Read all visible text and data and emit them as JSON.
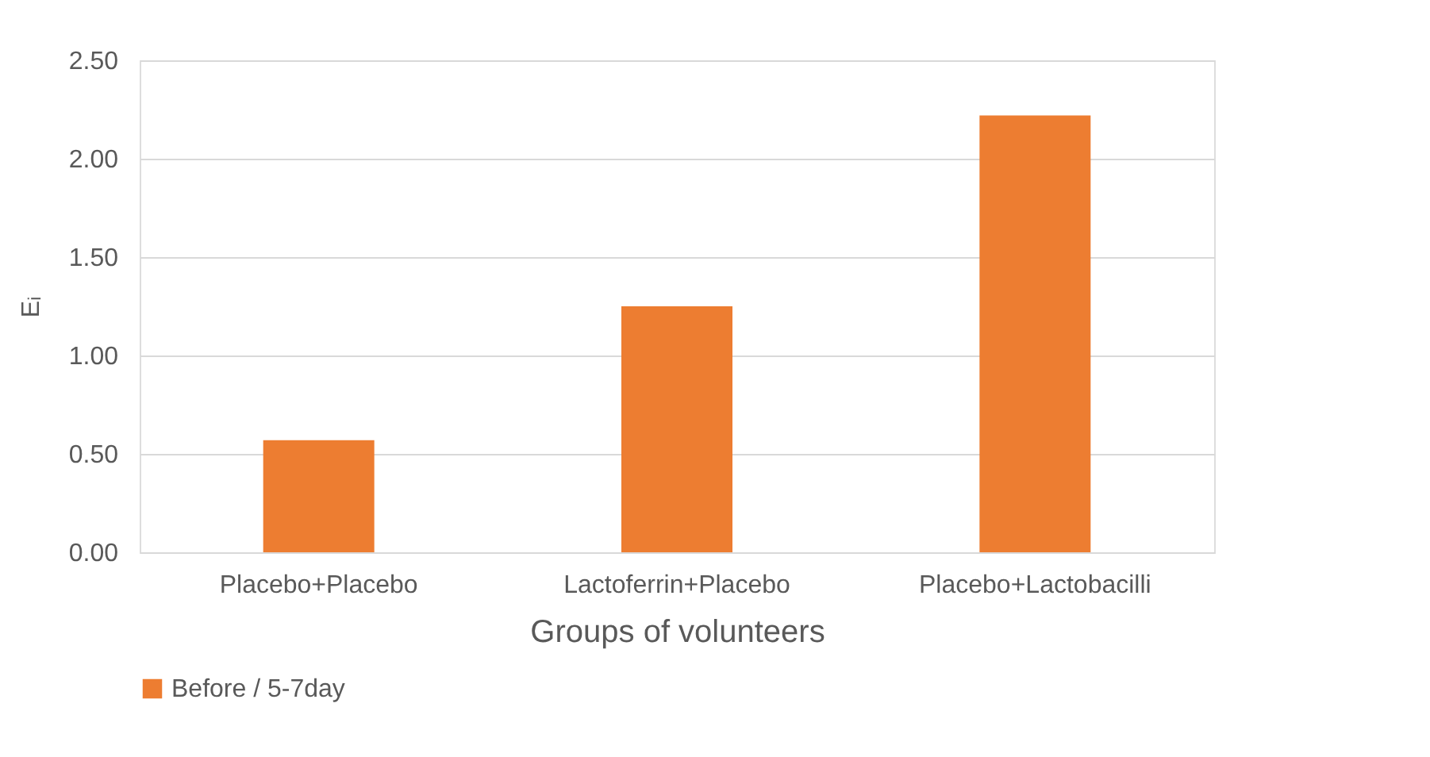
{
  "chart_data": {
    "type": "bar",
    "xlabel": "Groups of volunteers",
    "ylabel": "Eᵢ",
    "categories": [
      "Placebo+Placebo",
      "Lactoferrin+Placebo",
      "Placebo+Lactobacilli"
    ],
    "series": [
      {
        "name": "Before / 5-7day",
        "color": "#ed7d31",
        "values": [
          0.57,
          1.25,
          2.22
        ]
      }
    ],
    "ylim": [
      0,
      2.5
    ],
    "yticks": [
      {
        "value": 0,
        "label": "0.00"
      },
      {
        "value": 0.5,
        "label": "0.50"
      },
      {
        "value": 1,
        "label": "1.00"
      },
      {
        "value": 1.5,
        "label": "1.50"
      },
      {
        "value": 2,
        "label": "2.00"
      },
      {
        "value": 2.5,
        "label": "2.50"
      }
    ],
    "grid": "y",
    "legend": "bottom"
  }
}
